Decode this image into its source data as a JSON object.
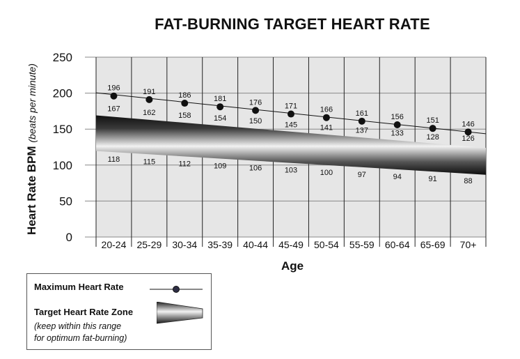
{
  "chart_data": {
    "type": "line",
    "title": "FAT-BURNING TARGET HEART RATE",
    "xlabel": "Age",
    "ylabel": "Heart Rate BPM",
    "ylabel_note": "(beats per minute)",
    "categories": [
      "20-24",
      "25-29",
      "30-34",
      "35-39",
      "40-44",
      "45-49",
      "50-54",
      "55-59",
      "60-64",
      "65-69",
      "70+"
    ],
    "ylim": [
      0,
      250
    ],
    "yticks": [
      "0",
      "50",
      "100",
      "150",
      "200",
      "250"
    ],
    "grid": true,
    "series": [
      {
        "name": "Maximum Heart Rate",
        "values": [
          196,
          191,
          186,
          181,
          176,
          171,
          166,
          161,
          156,
          151,
          146
        ]
      },
      {
        "name": "Target Heart Rate Zone upper",
        "values": [
          167,
          162,
          158,
          154,
          150,
          145,
          141,
          137,
          133,
          128,
          126
        ]
      },
      {
        "name": "Target Heart Rate Zone lower",
        "values": [
          118,
          115,
          112,
          109,
          106,
          103,
          100,
          97,
          94,
          91,
          88
        ]
      }
    ],
    "legend": {
      "position": "bottom-left",
      "max_label": "Maximum Heart Rate",
      "zone_label": "Target Heart Rate Zone",
      "zone_note_1": "(keep within this range",
      "zone_note_2": "for optimum fat-burning)"
    }
  },
  "colors": {
    "marker": "#111111",
    "grid": "#222222",
    "background": "#e6e6e6",
    "band_dark": "#1a1a1a",
    "band_light": "#f4f4f4"
  }
}
